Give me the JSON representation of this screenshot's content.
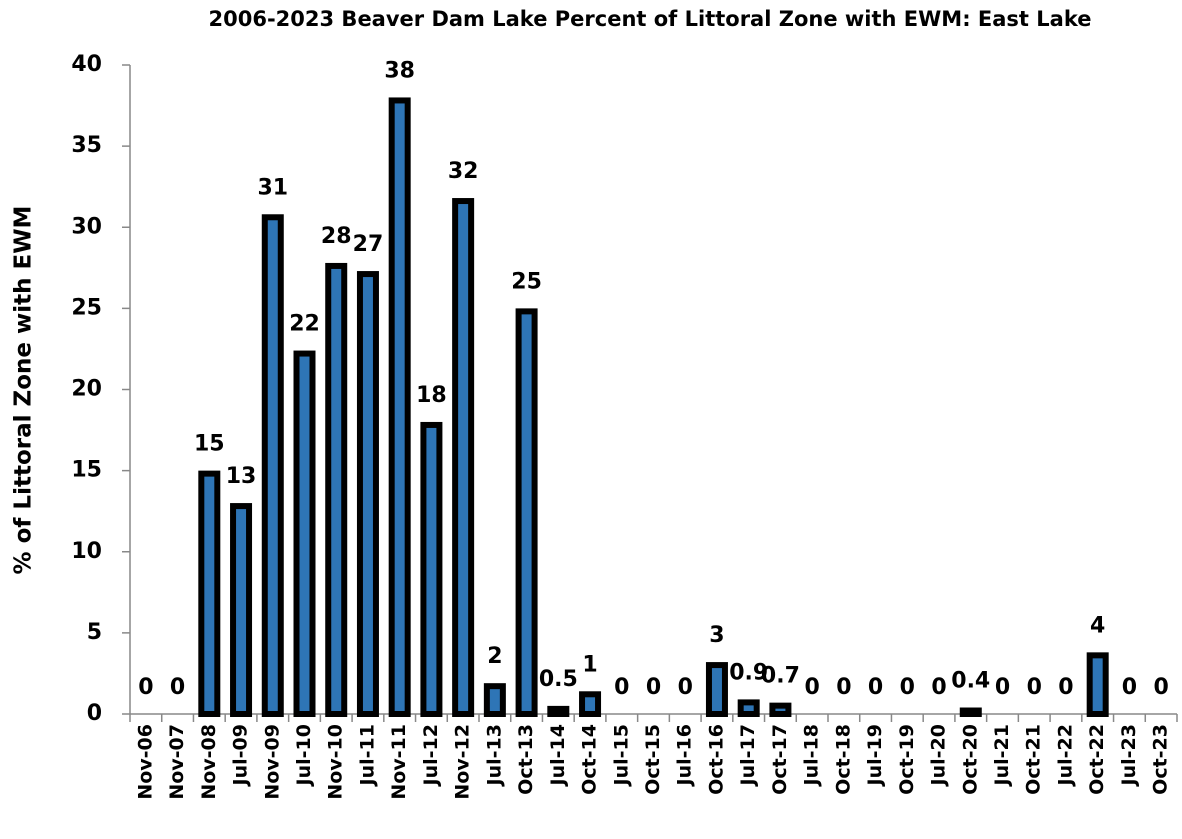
{
  "chart_data": {
    "type": "bar",
    "title": "2006-2023 Beaver Dam Lake Percent of Littoral Zone with EWM: East Lake",
    "y_label": "% of Littoral Zone with EWM",
    "categories": [
      "Nov-06",
      "Nov-07",
      "Nov-08",
      "Jul-09",
      "Nov-09",
      "Jul-10",
      "Nov-10",
      "Jul-11",
      "Nov-11",
      "Jul-12",
      "Nov-12",
      "Jul-13",
      "Oct-13",
      "Jul-14",
      "Oct-14",
      "Jul-15",
      "Oct-15",
      "Jul-16",
      "Oct-16",
      "Jul-17",
      "Oct-17",
      "Jul-18",
      "Oct-18",
      "Jul-19",
      "Oct-19",
      "Jul-20",
      "Oct-20",
      "Jul-21",
      "Oct-21",
      "Jul-22",
      "Oct-22",
      "Jul-23",
      "Oct-23"
    ],
    "values": [
      0,
      0,
      15,
      13,
      30.8,
      22.4,
      27.8,
      27.3,
      38,
      18,
      31.8,
      1.9,
      25,
      0.5,
      1.4,
      0,
      0,
      0,
      3.2,
      0.9,
      0.7,
      0,
      0,
      0,
      0,
      0,
      0.4,
      0,
      0,
      0,
      3.8,
      0,
      0
    ],
    "value_labels": [
      "0",
      "0",
      "15",
      "13",
      "31",
      "22",
      "28",
      "27",
      "38",
      "18",
      "32",
      "2",
      "25",
      "0.5",
      "1",
      "0",
      "0",
      "0",
      "3",
      "0.9",
      "0.7",
      "0",
      "0",
      "0",
      "0",
      "0",
      "0.4",
      "0",
      "0",
      "0",
      "4",
      "0",
      "0"
    ],
    "color": "#2e75b6",
    "ylim": [
      0,
      40
    ],
    "yticks": [
      0,
      5,
      10,
      15,
      20,
      25,
      30,
      35,
      40
    ],
    "grid": false
  }
}
